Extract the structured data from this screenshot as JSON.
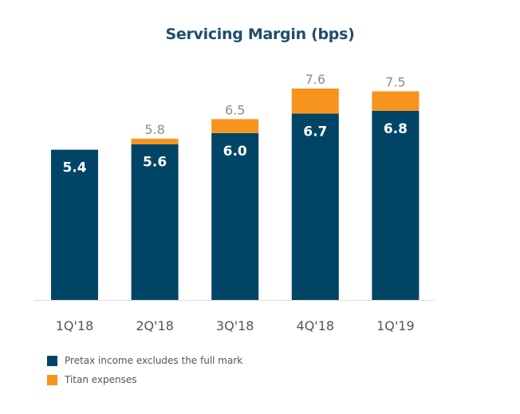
{
  "chart_data": {
    "type": "bar",
    "stacked": true,
    "title": "Servicing Margin (bps)",
    "xlabel": "",
    "ylabel": "",
    "ylim": [
      0,
      7.6
    ],
    "grid": false,
    "categories": [
      "1Q'18",
      "2Q'18",
      "3Q'18",
      "4Q'18",
      "1Q'19"
    ],
    "series": [
      {
        "name": "Pretax income excludes the full mark",
        "color": "#004466",
        "values": [
          5.4,
          5.6,
          6.0,
          6.7,
          6.8
        ],
        "labels": [
          "5.4",
          "5.6",
          "6.0",
          "6.7",
          "6.8"
        ]
      },
      {
        "name": "Titan expenses",
        "color": "#f7941d",
        "values": [
          0.0,
          0.2,
          0.5,
          0.9,
          0.7
        ]
      }
    ],
    "totals": [
      null,
      5.8,
      6.5,
      7.6,
      7.5
    ],
    "total_labels": [
      "",
      "5.8",
      "6.5",
      "7.6",
      "7.5"
    ],
    "legend_position": "bottom-left"
  }
}
